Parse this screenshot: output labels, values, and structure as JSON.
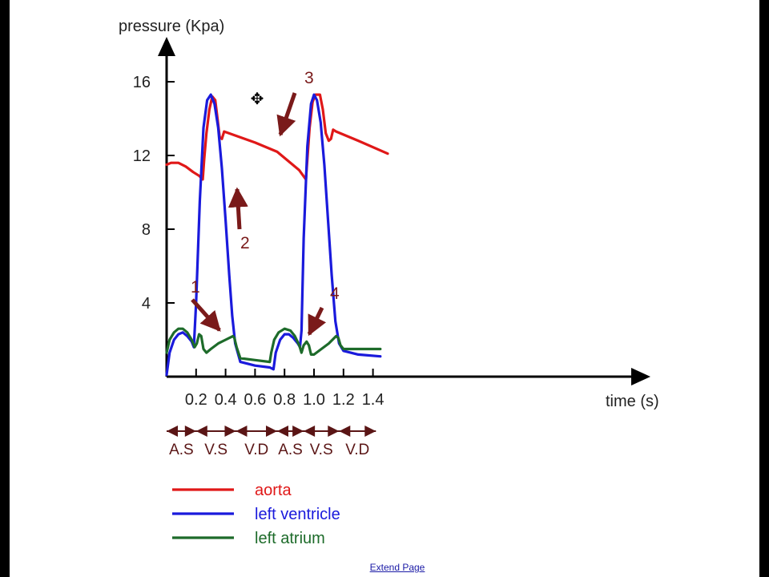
{
  "footer": {
    "link_label": "Extend Page"
  },
  "chart_data": {
    "type": "line",
    "ylabel": "pressure (Kpa)",
    "xlabel": "time (s)",
    "xlim": [
      0,
      1.5
    ],
    "ylim": [
      0,
      18
    ],
    "x_ticks": [
      0.2,
      0.4,
      0.6,
      0.8,
      1.0,
      1.2,
      1.4
    ],
    "x_tick_labels": [
      "0.2",
      "0.4",
      "0.6",
      "0.8",
      "1.0",
      "1.2",
      "1.4"
    ],
    "y_ticks": [
      4,
      8,
      12,
      16
    ],
    "y_tick_labels": [
      "4",
      "8",
      "12",
      "16"
    ],
    "grid": false,
    "legend_position": "bottom-left",
    "series": [
      {
        "name": "aorta",
        "color": "#e01818",
        "x": [
          0,
          0.03,
          0.08,
          0.13,
          0.18,
          0.22,
          0.245,
          0.255,
          0.27,
          0.29,
          0.31,
          0.33,
          0.345,
          0.36,
          0.375,
          0.39,
          0.6,
          0.75,
          0.9,
          0.945,
          0.955,
          0.97,
          0.99,
          1.01,
          1.04,
          1.06,
          1.08,
          1.1,
          1.115,
          1.13,
          1.15,
          1.3,
          1.5
        ],
        "y": [
          11.5,
          11.6,
          11.6,
          11.4,
          11.1,
          10.9,
          10.7,
          11.8,
          13.2,
          14.5,
          15.2,
          15.0,
          14.0,
          13.0,
          12.9,
          13.3,
          12.7,
          12.2,
          11.2,
          10.7,
          11.8,
          13.5,
          14.9,
          15.3,
          15.3,
          14.5,
          13.2,
          12.8,
          12.9,
          13.4,
          13.3,
          12.8,
          12.1
        ]
      },
      {
        "name": "left ventricle",
        "color": "#1a1adc",
        "x": [
          0,
          0.02,
          0.05,
          0.08,
          0.11,
          0.14,
          0.17,
          0.185,
          0.2,
          0.225,
          0.25,
          0.275,
          0.3,
          0.325,
          0.35,
          0.375,
          0.4,
          0.425,
          0.445,
          0.465,
          0.5,
          0.6,
          0.7,
          0.725,
          0.74,
          0.77,
          0.8,
          0.83,
          0.86,
          0.89,
          0.905,
          0.915,
          0.93,
          0.955,
          0.98,
          1.0,
          1.02,
          1.045,
          1.07,
          1.095,
          1.12,
          1.145,
          1.17,
          1.2,
          1.3,
          1.45
        ],
        "y": [
          0.1,
          1.3,
          2.0,
          2.3,
          2.4,
          2.2,
          1.9,
          1.6,
          4.0,
          9.5,
          13.5,
          15.0,
          15.3,
          14.8,
          13.5,
          11.3,
          8.5,
          5.5,
          3.3,
          1.8,
          0.8,
          0.6,
          0.5,
          0.4,
          1.3,
          2.0,
          2.3,
          2.3,
          2.1,
          1.8,
          1.6,
          2.5,
          7.5,
          12.5,
          14.8,
          15.3,
          15.0,
          13.8,
          11.5,
          8.5,
          5.5,
          3.0,
          1.8,
          1.4,
          1.2,
          1.1
        ]
      },
      {
        "name": "left atrium",
        "color": "#1d6b2a",
        "x": [
          0,
          0.02,
          0.05,
          0.08,
          0.11,
          0.14,
          0.17,
          0.19,
          0.205,
          0.22,
          0.235,
          0.25,
          0.27,
          0.3,
          0.35,
          0.4,
          0.45,
          0.46,
          0.475,
          0.5,
          0.6,
          0.7,
          0.71,
          0.73,
          0.76,
          0.8,
          0.84,
          0.87,
          0.9,
          0.915,
          0.93,
          0.95,
          0.965,
          0.98,
          1.0,
          1.05,
          1.1,
          1.15,
          1.165,
          1.18,
          1.2,
          1.3,
          1.45
        ],
        "y": [
          1.3,
          2.0,
          2.4,
          2.6,
          2.6,
          2.4,
          2.0,
          1.6,
          1.8,
          2.3,
          2.2,
          1.5,
          1.3,
          1.5,
          1.8,
          2.0,
          2.2,
          2.1,
          1.6,
          1.0,
          0.9,
          0.8,
          1.3,
          2.0,
          2.4,
          2.6,
          2.5,
          2.2,
          1.7,
          1.3,
          1.7,
          1.9,
          1.7,
          1.2,
          1.2,
          1.5,
          1.8,
          2.2,
          2.1,
          1.7,
          1.5,
          1.5,
          1.5
        ]
      }
    ],
    "phases": [
      {
        "label": "A.S",
        "start": 0.0,
        "end": 0.2
      },
      {
        "label": "V.S",
        "start": 0.2,
        "end": 0.47
      },
      {
        "label": "V.D",
        "start": 0.47,
        "end": 0.75
      },
      {
        "label": "A.S",
        "start": 0.75,
        "end": 0.93
      },
      {
        "label": "V.S",
        "start": 0.93,
        "end": 1.17
      },
      {
        "label": "V.D",
        "start": 1.17,
        "end": 1.42
      }
    ],
    "annotations": [
      {
        "label": "1",
        "x": 0.18,
        "y": 2.3
      },
      {
        "label": "2",
        "x": 0.245,
        "y": 10.7
      },
      {
        "label": "3",
        "x": 0.375,
        "y": 12.9
      },
      {
        "label": "4",
        "x": 0.46,
        "y": 2.2
      }
    ]
  }
}
